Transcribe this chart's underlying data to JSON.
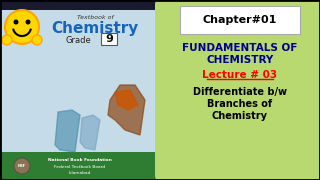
{
  "left_bg_color": "#b8d4e8",
  "right_rounded_color": "#b8d870",
  "chapter_text": "Chapter#01",
  "title_line1": "FUNDAMENTALS OF",
  "title_line2": "CHEMISTRY",
  "lecture_text": "Lecture # 03",
  "lecture_color": "#ff0000",
  "diff_line1": "Differentiate b/w",
  "diff_line2": "Branches of",
  "diff_line3": "Chemistry",
  "diff_color": "#000000",
  "textbook_of": "Textbook of",
  "chemistry_text": "Chemistry",
  "grade_text": "Grade",
  "grade_num": "9",
  "nbf_text": "National Book Foundation",
  "ftb_text": "Federal Textbook Board",
  "isl_text": "Islamabad",
  "title_color": "#00008b",
  "bottom_bar_color": "#2e7d32",
  "chemistry_color": "#1565c0"
}
